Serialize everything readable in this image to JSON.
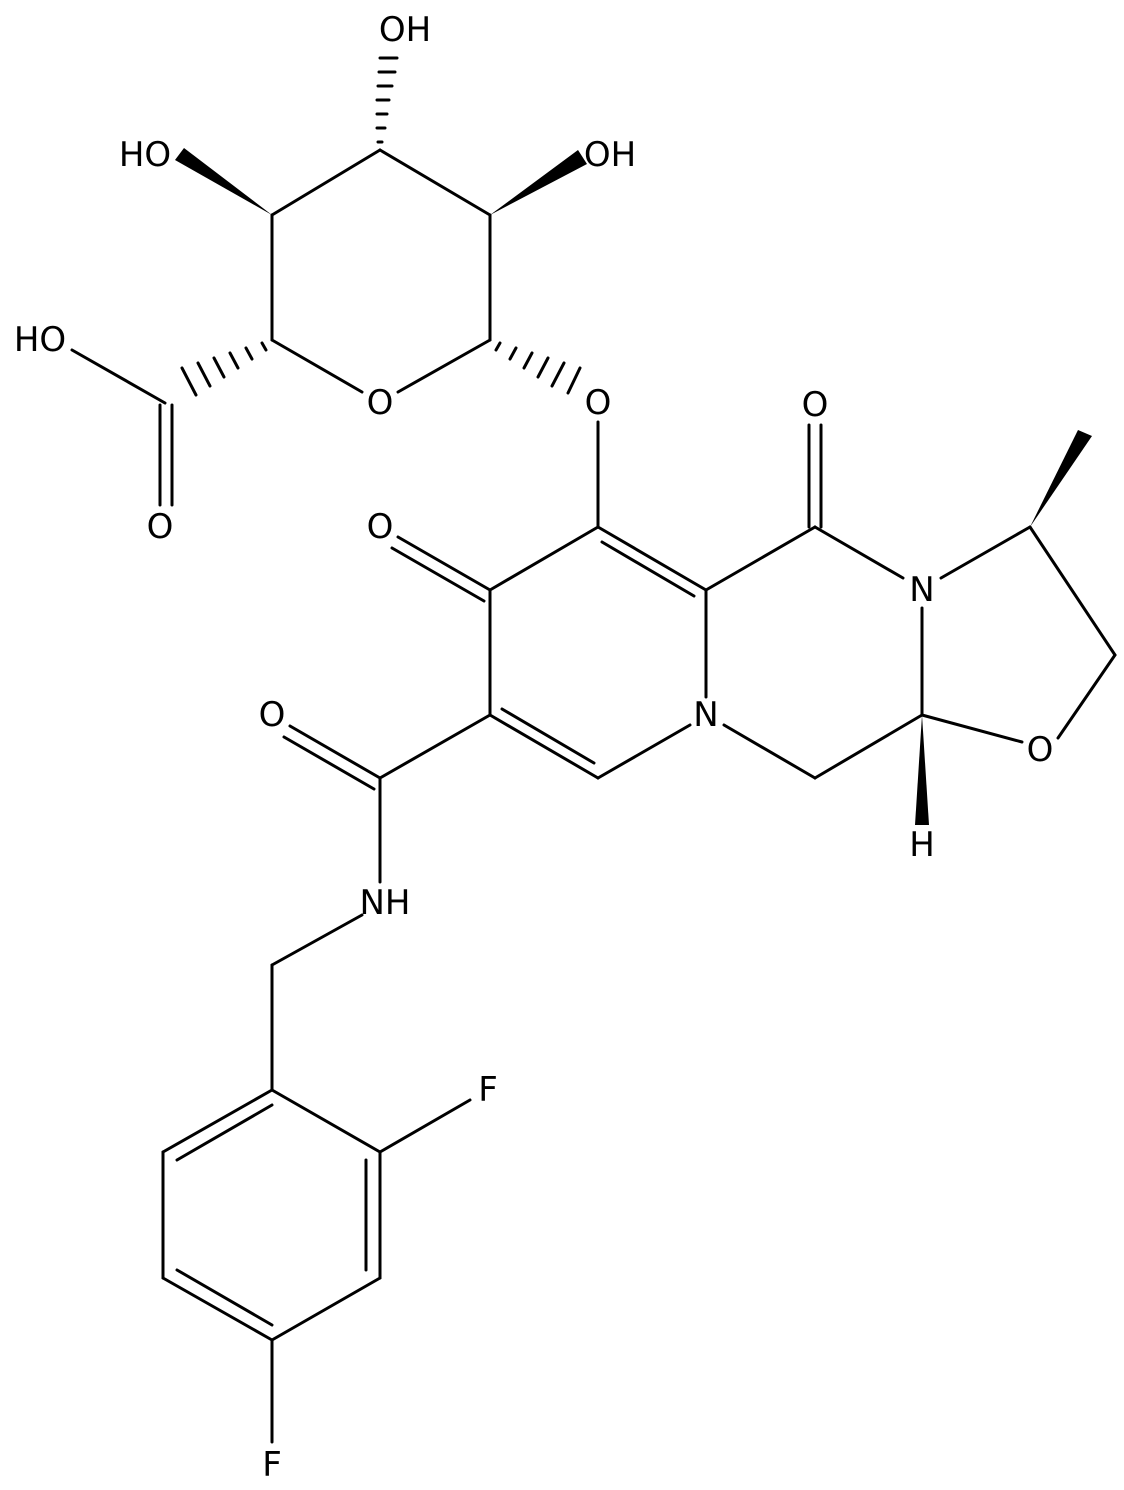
{
  "atoms": {
    "sugar_oh_top": "OH",
    "sugar_ho_left": "HO",
    "sugar_oh_right": "OH",
    "acid_ho": "HO",
    "ring_o": "O",
    "acid_o": "O",
    "glycosidic_o": "O",
    "ketone_o_top": "O",
    "ketone_o_left": "O",
    "n_right": "N",
    "n_ring": "N",
    "oxazolidine_o": "O",
    "stereo_h": "H",
    "amide_o": "O",
    "amide_nh": "NH",
    "f_ortho": "F",
    "f_para": "F"
  }
}
